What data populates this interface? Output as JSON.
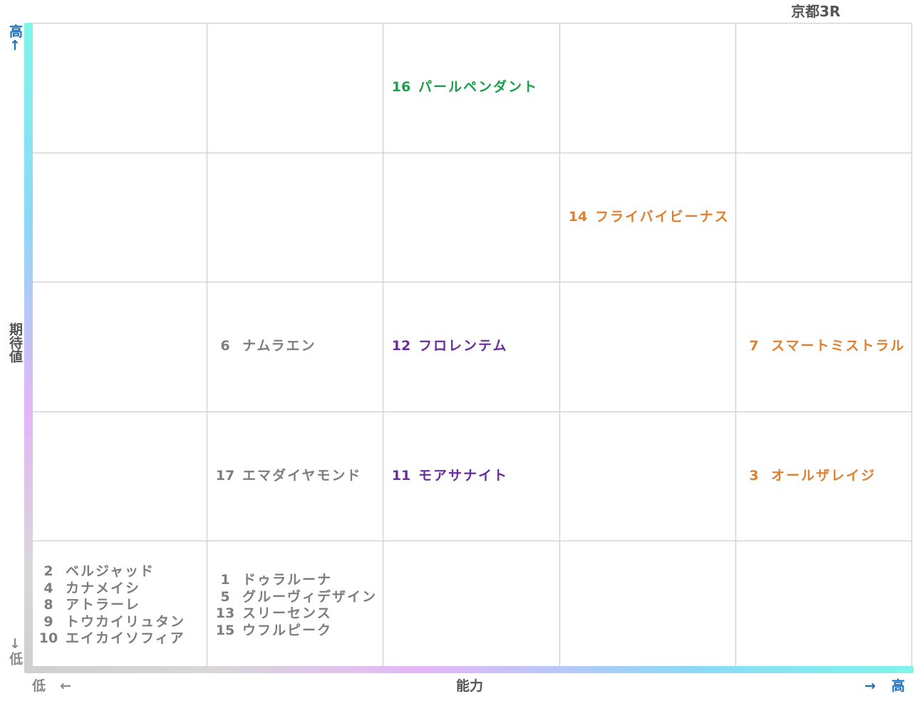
{
  "race_title": "京都3R",
  "axes": {
    "y_label": "期待値",
    "y_high": "高",
    "y_low": "低",
    "y_up_arrow": "↑",
    "y_down_arrow": "↓",
    "x_label": "能力",
    "x_low": "低",
    "x_high": "高",
    "x_left_arrow": "←",
    "x_right_arrow": "→"
  },
  "colors": {
    "orange": "#e07f2e",
    "green": "#1aa04a",
    "purple": "#6a2d9c",
    "gray": "#7d7d7d",
    "grid": "#c8c8c8",
    "axis_label_blue": "#1e6fb8"
  },
  "chart_data": {
    "type": "table",
    "x_categories": 5,
    "y_categories": 5,
    "cells": [
      {
        "col": 3,
        "row": 1,
        "color": "green",
        "horses": [
          {
            "num": "16",
            "name": "パールペンダント"
          }
        ]
      },
      {
        "col": 4,
        "row": 2,
        "color": "orange",
        "horses": [
          {
            "num": "14",
            "name": "フライバイビーナス"
          }
        ]
      },
      {
        "col": 2,
        "row": 3,
        "color": "gray",
        "horses": [
          {
            "num": "6",
            "name": "ナムラエン"
          }
        ]
      },
      {
        "col": 3,
        "row": 3,
        "color": "purple",
        "horses": [
          {
            "num": "12",
            "name": "フロレンテム"
          }
        ]
      },
      {
        "col": 5,
        "row": 3,
        "color": "orange",
        "horses": [
          {
            "num": "7",
            "name": "スマートミストラル"
          }
        ]
      },
      {
        "col": 2,
        "row": 4,
        "color": "gray",
        "horses": [
          {
            "num": "17",
            "name": "エマダイヤモンド"
          }
        ]
      },
      {
        "col": 3,
        "row": 4,
        "color": "purple",
        "horses": [
          {
            "num": "11",
            "name": "モアサナイト"
          }
        ]
      },
      {
        "col": 5,
        "row": 4,
        "color": "orange",
        "horses": [
          {
            "num": "3",
            "name": "オールザレイジ"
          }
        ]
      },
      {
        "col": 1,
        "row": 5,
        "color": "gray",
        "horses": [
          {
            "num": "2",
            "name": "ベルジャッド"
          },
          {
            "num": "4",
            "name": "カナメイシ"
          },
          {
            "num": "8",
            "name": "アトラーレ"
          },
          {
            "num": "9",
            "name": "トウカイリュタン"
          },
          {
            "num": "10",
            "name": "エイカイソフィア"
          }
        ]
      },
      {
        "col": 2,
        "row": 5,
        "color": "gray",
        "horses": [
          {
            "num": "1",
            "name": "ドゥラルーナ"
          },
          {
            "num": "5",
            "name": "グルーヴィデザイン"
          },
          {
            "num": "13",
            "name": "スリーセンス"
          },
          {
            "num": "15",
            "name": "ウフルピーク"
          }
        ]
      }
    ]
  }
}
